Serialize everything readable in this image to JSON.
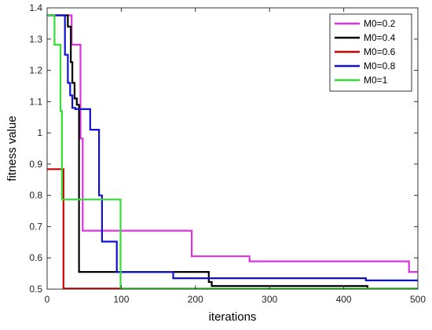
{
  "chart_data": {
    "type": "line",
    "title": "",
    "xlabel": "iterations",
    "ylabel": "fitness value",
    "xlim": [
      0,
      500
    ],
    "ylim": [
      0.5,
      1.4
    ],
    "xticks": [
      0,
      100,
      200,
      300,
      400,
      500
    ],
    "yticks": [
      0.5,
      0.6,
      0.7,
      0.8,
      0.9,
      1,
      1.1,
      1.2,
      1.3,
      1.4
    ],
    "x_tick_labels": [
      "0",
      "100",
      "200",
      "300",
      "400",
      "500"
    ],
    "y_tick_labels": [
      "0.5",
      "0.6",
      "0.7",
      "0.8",
      "0.9",
      "1",
      "1.1",
      "1.2",
      "1.3",
      "1.4"
    ],
    "grid": false,
    "legend_position": "top-right",
    "series": [
      {
        "name": "M0=0.2",
        "color": "#dd33dd",
        "x": [
          0,
          33,
          33,
          45,
          45,
          48,
          48,
          195,
          195,
          273,
          273,
          488,
          488,
          500
        ],
        "y": [
          1.376,
          1.376,
          1.282,
          1.282,
          0.982,
          0.982,
          0.687,
          0.687,
          0.605,
          0.605,
          0.589,
          0.589,
          0.555,
          0.555
        ]
      },
      {
        "name": "M0=0.4",
        "color": "#000000",
        "x": [
          0,
          28,
          28,
          32,
          32,
          34,
          34,
          37,
          37,
          40,
          40,
          43,
          43,
          218,
          218,
          222,
          222,
          432,
          432,
          500
        ],
        "y": [
          1.376,
          1.376,
          1.34,
          1.34,
          1.226,
          1.226,
          1.16,
          1.16,
          1.11,
          1.11,
          1.09,
          1.09,
          0.555,
          0.555,
          0.523,
          0.523,
          0.51,
          0.51,
          0.502,
          0.502
        ]
      },
      {
        "name": "M0=0.6",
        "color": "#cc0000",
        "x": [
          0,
          22,
          22,
          500
        ],
        "y": [
          0.884,
          0.884,
          0.502,
          0.502
        ]
      },
      {
        "name": "M0=0.8",
        "color": "#1010d0",
        "x": [
          0,
          24,
          24,
          28,
          28,
          31,
          31,
          34,
          34,
          38,
          38,
          58,
          58,
          70,
          70,
          74,
          74,
          94,
          94,
          170,
          170,
          430,
          430,
          500
        ],
        "y": [
          1.376,
          1.376,
          1.25,
          1.25,
          1.16,
          1.16,
          1.12,
          1.12,
          1.08,
          1.08,
          1.076,
          1.076,
          1.01,
          1.01,
          0.8,
          0.8,
          0.652,
          0.652,
          0.555,
          0.555,
          0.535,
          0.535,
          0.528,
          0.528
        ]
      },
      {
        "name": "M0=1",
        "color": "#33dd33",
        "x": [
          0,
          10,
          10,
          18,
          18,
          20,
          20,
          36,
          36,
          99,
          99,
          500
        ],
        "y": [
          1.376,
          1.376,
          1.282,
          1.282,
          1.07,
          1.07,
          0.787,
          0.787,
          0.787,
          0.787,
          0.502,
          0.502
        ]
      }
    ]
  }
}
